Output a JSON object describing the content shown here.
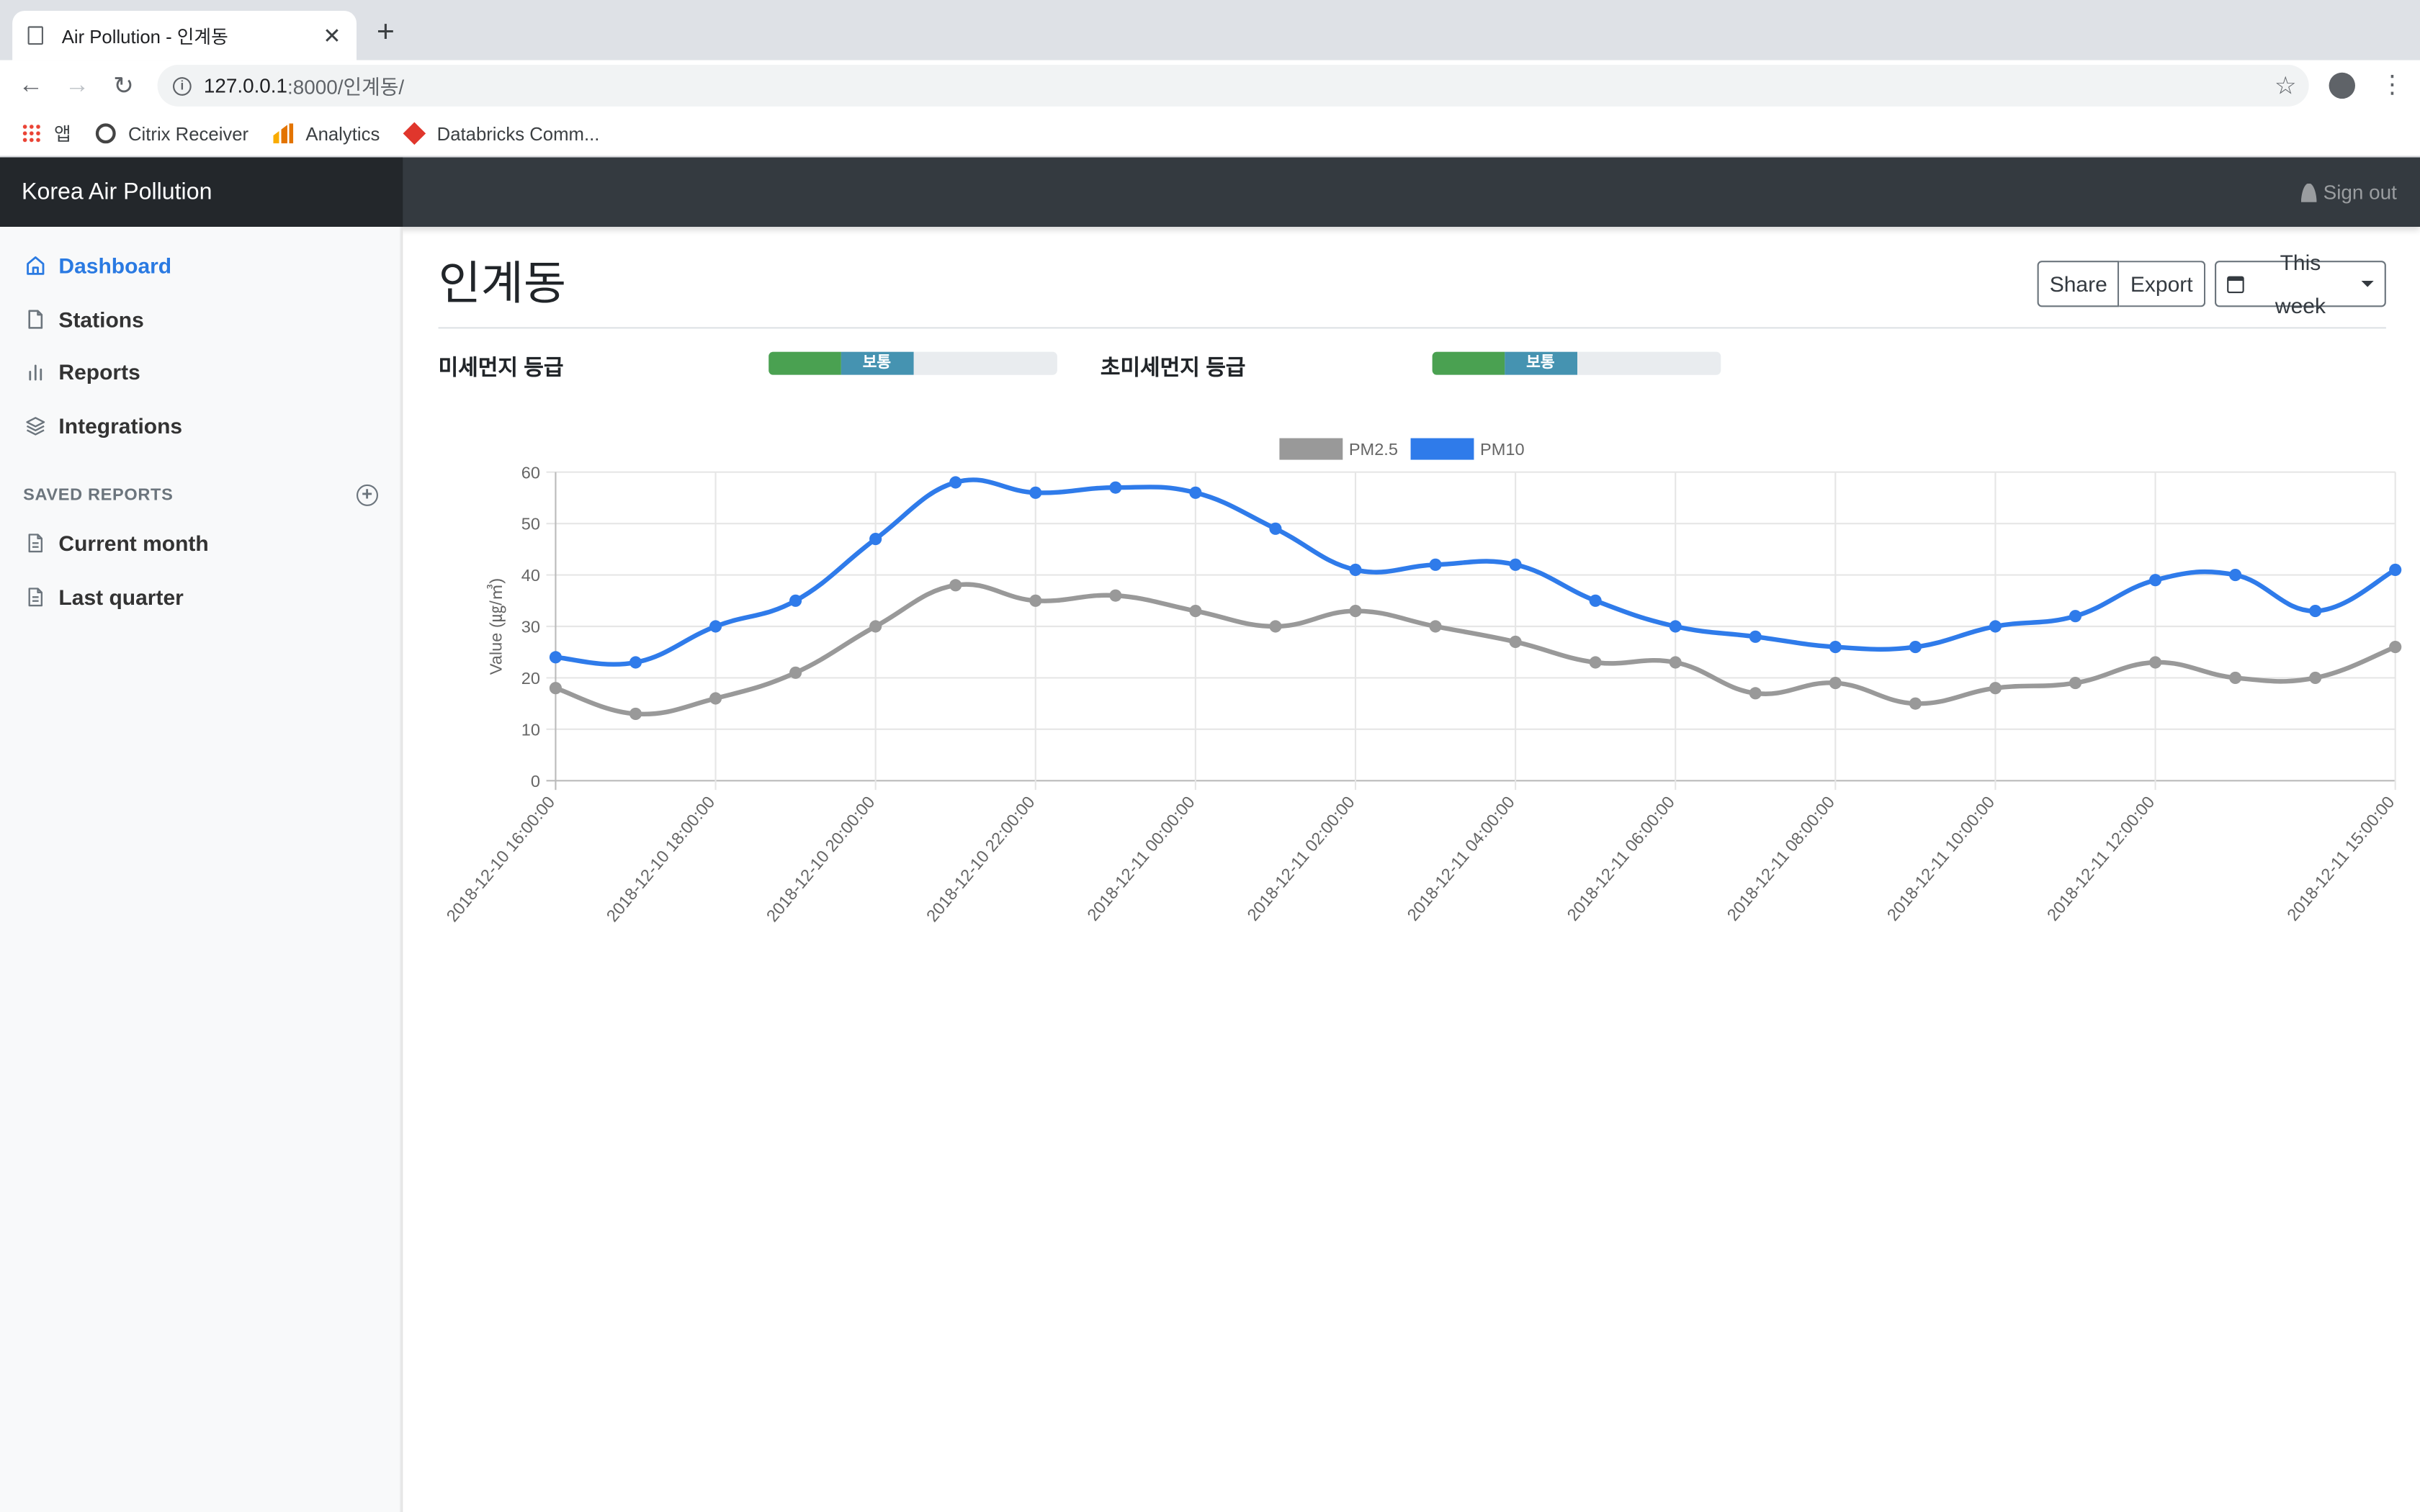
{
  "browser": {
    "tab_title": "Air Pollution - 인계동",
    "new_tab": "+",
    "url_host": "127.0.0.1",
    "url_path": ":8000/인계동/",
    "bookmarks": [
      "앱",
      "Citrix Receiver",
      "Analytics",
      "Databricks Comm..."
    ]
  },
  "navbar": {
    "brand": "Korea Air Pollution",
    "signout": "Sign out"
  },
  "sidebar": {
    "items": [
      {
        "label": "Dashboard",
        "active": true
      },
      {
        "label": "Stations"
      },
      {
        "label": "Reports"
      },
      {
        "label": "Integrations"
      }
    ],
    "saved_heading": "SAVED REPORTS",
    "saved": [
      "Current month",
      "Last quarter"
    ]
  },
  "main": {
    "title": "인계동",
    "share": "Share",
    "export": "Export",
    "range": "This week",
    "pm10_grade_label": "미세먼지 등급",
    "pm25_grade_label": "초미세먼지 등급",
    "pm10_grade": "보통",
    "pm25_grade": "보통",
    "grade_fill_fraction": 0.5
  },
  "colors": {
    "pm25": "#999999",
    "pm10": "#2f7bea",
    "good": "#4aa151",
    "normal": "#4593b1",
    "active_link": "#2a7ae2"
  },
  "chart_data": {
    "type": "line",
    "ylabel": "Value (㎍/㎥)",
    "ylim": [
      0,
      60
    ],
    "yticks": [
      0,
      10,
      20,
      30,
      40,
      50,
      60
    ],
    "grid": true,
    "legend_position": "top-center",
    "x": [
      "2018-12-10 16:00:00",
      "2018-12-10 17:00:00",
      "2018-12-10 18:00:00",
      "2018-12-10 19:00:00",
      "2018-12-10 20:00:00",
      "2018-12-10 21:00:00",
      "2018-12-10 22:00:00",
      "2018-12-10 23:00:00",
      "2018-12-11 00:00:00",
      "2018-12-11 01:00:00",
      "2018-12-11 02:00:00",
      "2018-12-11 03:00:00",
      "2018-12-11 04:00:00",
      "2018-12-11 05:00:00",
      "2018-12-11 06:00:00",
      "2018-12-11 07:00:00",
      "2018-12-11 08:00:00",
      "2018-12-11 09:00:00",
      "2018-12-11 10:00:00",
      "2018-12-11 11:00:00",
      "2018-12-11 12:00:00",
      "2018-12-11 13:00:00",
      "2018-12-11 14:00:00",
      "2018-12-11 15:00:00"
    ],
    "tick_labels": [
      "2018-12-10 16:00:00",
      "2018-12-10 18:00:00",
      "2018-12-10 20:00:00",
      "2018-12-10 22:00:00",
      "2018-12-11 00:00:00",
      "2018-12-11 02:00:00",
      "2018-12-11 04:00:00",
      "2018-12-11 06:00:00",
      "2018-12-11 08:00:00",
      "2018-12-11 10:00:00",
      "2018-12-11 12:00:00",
      "2018-12-11 15:00:00"
    ],
    "series": [
      {
        "name": "PM2.5",
        "color": "#999999",
        "values": [
          18,
          13,
          16,
          21,
          30,
          38,
          35,
          36,
          33,
          30,
          33,
          30,
          27,
          23,
          23,
          17,
          19,
          15,
          18,
          19,
          23,
          20,
          20,
          26
        ]
      },
      {
        "name": "PM10",
        "color": "#2f7bea",
        "values": [
          24,
          23,
          30,
          35,
          47,
          58,
          56,
          57,
          56,
          49,
          41,
          42,
          42,
          35,
          30,
          28,
          26,
          26,
          30,
          32,
          39,
          40,
          33,
          41
        ]
      }
    ]
  }
}
